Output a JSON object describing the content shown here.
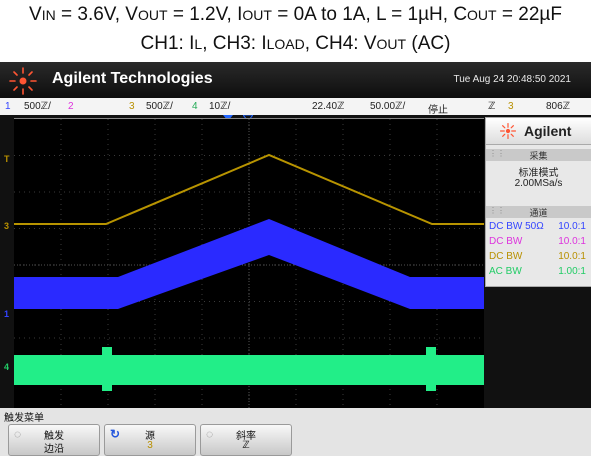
{
  "caption": {
    "line1": {
      "vin_main": "V",
      "vin_sub": "IN",
      "vin_val": " = 3.6V, ",
      "vout_main": "V",
      "vout_sub": "OUT",
      "vout_val": " = 1.2V, ",
      "iout_main": "I",
      "iout_sub": "OUT",
      "iout_val": " = 0A to 1A, L = 1µH, ",
      "cout_main": "C",
      "cout_sub": "OUT",
      "cout_val": " = 22µF"
    },
    "line2": {
      "ch1": "CH1: I",
      "ch1_sub": "L",
      "ch3": ", CH3: I",
      "ch3_sub": "LOAD",
      "ch4": ", CH4: V",
      "ch4_sub": "OUT",
      "ch4_tail": " (AC)"
    }
  },
  "titlebar": {
    "brand": "Agilent Technologies",
    "datetime": "Tue Aug 24 20:48:50 2021"
  },
  "statusbar": {
    "ch1_num": "1",
    "ch1_scale": "500ℤ/",
    "ch2_num": "2",
    "ch3_num": "3",
    "ch3_scale": "500ℤ/",
    "ch4_num": "4",
    "ch4_scale": "10ℤ/",
    "time_offset": "22.40ℤ",
    "timebase": "50.00ℤ/",
    "run_state": "停止",
    "trigger_icon": "ℤ",
    "trigger_source": "3",
    "trigger_level": "806ℤ"
  },
  "markers": {
    "t": "T",
    "ch3": "3",
    "ch1": "1",
    "ch4": "4"
  },
  "panel": {
    "brand": "Agilent",
    "acq_header": "采集",
    "acq_mode": "标准模式",
    "sample_rate": "2.00MSa/s",
    "channel_header": "通道",
    "channels": [
      {
        "label": "DC BW 50Ω",
        "ratio": "10.0:1",
        "color": "#3344ff"
      },
      {
        "label": "DC BW",
        "ratio": "10.0:1",
        "color": "#dd33dd"
      },
      {
        "label": "DC BW",
        "ratio": "10.0:1",
        "color": "#b89000"
      },
      {
        "label": "AC BW",
        "ratio": "1.00:1",
        "color": "#22cc66"
      }
    ]
  },
  "menu": {
    "title": "触发菜单",
    "softkeys": [
      {
        "label": "触发",
        "value": "边沿",
        "icon": "ℤ"
      },
      {
        "label": "源",
        "value": "3",
        "icon": "ℤ"
      },
      {
        "label": "斜率",
        "value": "ℤ",
        "icon": "ℤ"
      }
    ]
  },
  "colors": {
    "ch1": "#2a2aff",
    "ch3": "#b89400",
    "ch4": "#22ee88"
  }
}
